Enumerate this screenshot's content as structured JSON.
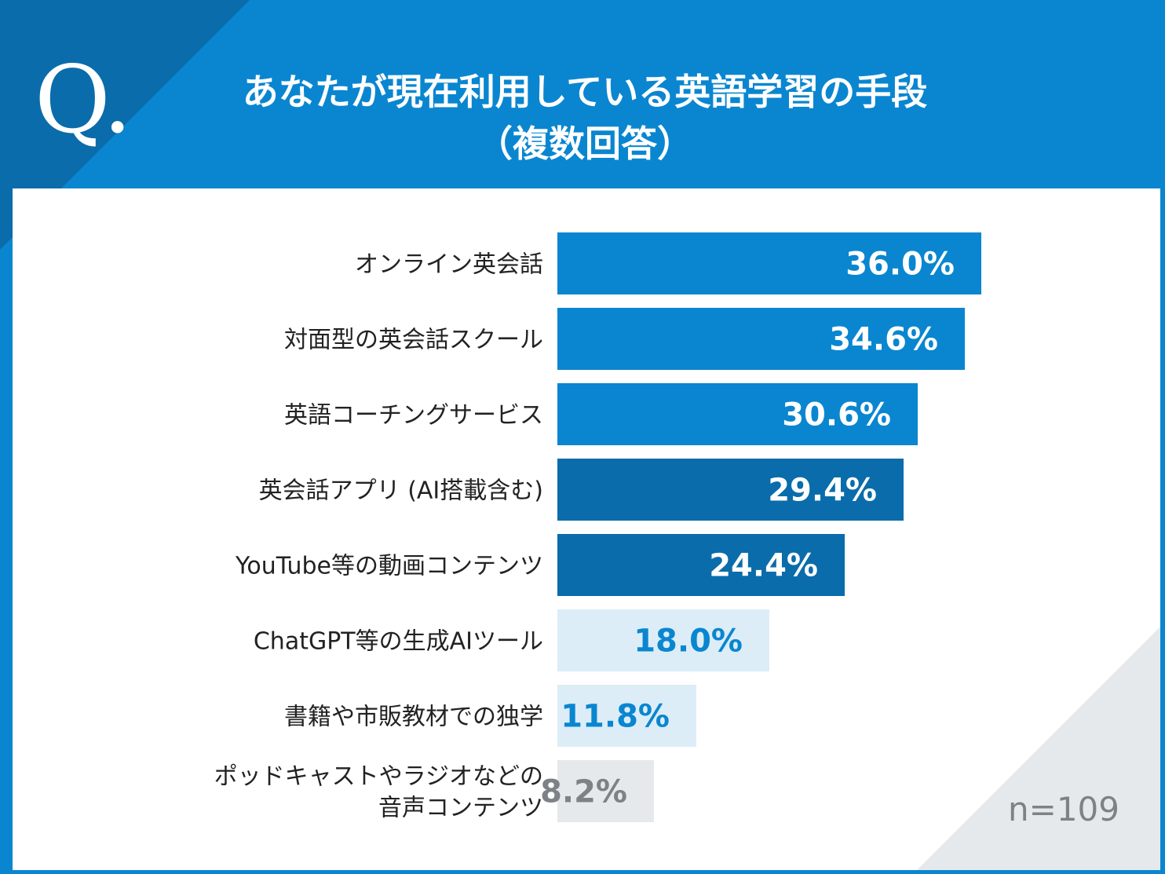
{
  "header": {
    "q_mark": "Q.",
    "title_line1": "あなたが現在利用している英語学習の手段",
    "title_line2": "（複数回答）"
  },
  "sample_size": "n=109",
  "colors": {
    "header": "#0a86d0",
    "header_corner": "#0a6cab",
    "bar_top": "#0a86d0",
    "bar_mid": "#0a6cab",
    "bar_light": "#dcedf7",
    "bar_gray": "#e6e9ec",
    "text_light_bar": "#0a86d0",
    "text_gray_bar": "#7d8287"
  },
  "chart_data": {
    "type": "bar",
    "orientation": "horizontal",
    "title": "あなたが現在利用している英語学習の手段（複数回答）",
    "unit": "%",
    "xlim": [
      0,
      40
    ],
    "categories": [
      [
        "オンライン英会話"
      ],
      [
        "対面型の英会話スクール"
      ],
      [
        "英語コーチングサービス"
      ],
      [
        "英会話アプリ (AI搭載含む)"
      ],
      [
        "YouTube等の動画コンテンツ"
      ],
      [
        "ChatGPT等の生成AIツール"
      ],
      [
        "書籍や市販教材での独学"
      ],
      [
        "ポッドキャストやラジオなどの",
        "音声コンテンツ"
      ]
    ],
    "values": [
      36.0,
      34.6,
      30.6,
      29.4,
      24.4,
      18.0,
      11.8,
      8.2
    ],
    "value_labels": [
      "36.0%",
      "34.6%",
      "30.6%",
      "29.4%",
      "24.4%",
      "18.0%",
      "11.8%",
      "8.2%"
    ],
    "bar_styles": [
      "top",
      "top",
      "top",
      "mid",
      "mid",
      "light",
      "light",
      "gray"
    ]
  }
}
